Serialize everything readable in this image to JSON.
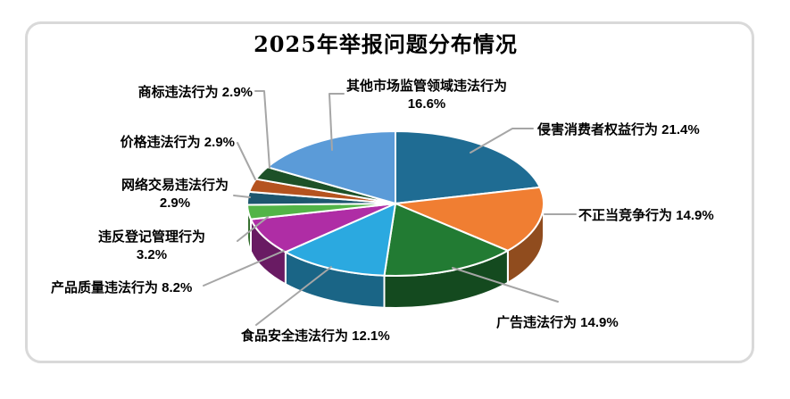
{
  "chart_data": {
    "type": "pie",
    "style": "3d-pie",
    "title": "2025年举报问题分布情况",
    "unit": "%",
    "start_angle_deg": 0,
    "direction": "clockwise",
    "legend_position": "none",
    "label_format": "{label} {value}%",
    "label_text_color": "#000000",
    "leader_line_color": "#A6A6A6",
    "border_color": "#D9D9D9",
    "background_color": "#FFFFFF",
    "series": [
      {
        "label": "侵害消费者权益行为",
        "value": 21.4,
        "color": "#1F6C93"
      },
      {
        "label": "不正当竞争行为",
        "value": 14.9,
        "color": "#F07E32"
      },
      {
        "label": "广告违法行为",
        "value": 14.9,
        "color": "#227B33"
      },
      {
        "label": "食品安全违法行为",
        "value": 12.1,
        "color": "#2BA9E0"
      },
      {
        "label": "产品质量违法行为",
        "value": 8.2,
        "color": "#AF2DA5"
      },
      {
        "label": "违反登记管理行为",
        "value": 3.2,
        "color": "#52B447"
      },
      {
        "label": "网络交易违法行为",
        "value": 2.9,
        "color": "#1D566F"
      },
      {
        "label": "价格违法行为",
        "value": 2.9,
        "color": "#B5531F"
      },
      {
        "label": "商标违法行为",
        "value": 2.9,
        "color": "#1D5128"
      },
      {
        "label": "其他市场监管领域违法行为",
        "value": 16.6,
        "color": "#5B9BD8"
      }
    ]
  }
}
